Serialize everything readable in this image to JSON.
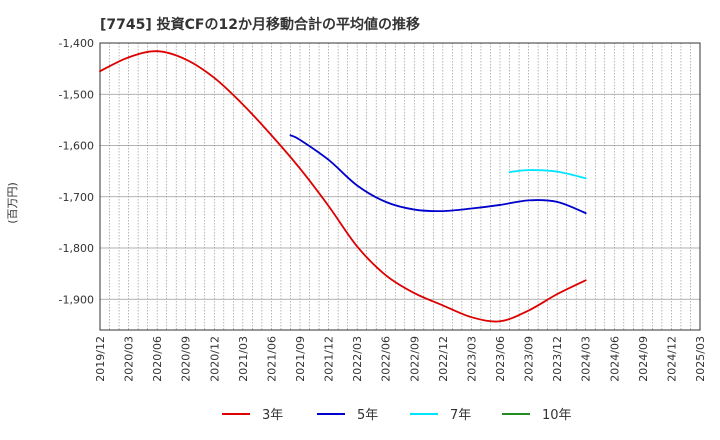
{
  "chart_data": {
    "type": "line",
    "title": "[7745]  投資CFの12か月移動合計の平均値の推移",
    "ylabel": "(百万円)",
    "xlabel": "",
    "ylim": [
      -1960,
      -1400
    ],
    "yticks": [
      -1400,
      -1500,
      -1600,
      -1700,
      -1800,
      -1900
    ],
    "ytick_labels": [
      "-1,400",
      "-1,500",
      "-1,600",
      "-1,700",
      "-1,800",
      "-1,900"
    ],
    "xticks": [
      "2019/12",
      "2020/03",
      "2020/06",
      "2020/09",
      "2020/12",
      "2021/03",
      "2021/06",
      "2021/09",
      "2021/12",
      "2022/03",
      "2022/06",
      "2022/09",
      "2022/12",
      "2023/03",
      "2023/06",
      "2023/09",
      "2023/12",
      "2024/03",
      "2024/06",
      "2024/09",
      "2024/12",
      "2025/03"
    ],
    "grid": true,
    "legend_position": "bottom",
    "series": [
      {
        "name": "3年",
        "color": "#dd0000",
        "points": [
          [
            "2019/12",
            -1455
          ],
          [
            "2020/03",
            -1428
          ],
          [
            "2020/06",
            -1416
          ],
          [
            "2020/09",
            -1432
          ],
          [
            "2020/12",
            -1468
          ],
          [
            "2021/03",
            -1520
          ],
          [
            "2021/06",
            -1580
          ],
          [
            "2021/09",
            -1645
          ],
          [
            "2021/12",
            -1718
          ],
          [
            "2022/03",
            -1797
          ],
          [
            "2022/06",
            -1853
          ],
          [
            "2022/09",
            -1888
          ],
          [
            "2022/12",
            -1912
          ],
          [
            "2023/03",
            -1935
          ],
          [
            "2023/06",
            -1943
          ],
          [
            "2023/09",
            -1922
          ],
          [
            "2023/12",
            -1890
          ],
          [
            "2024/03",
            -1863
          ]
        ]
      },
      {
        "name": "5年",
        "color": "#0000cc",
        "points": [
          [
            "2021/08",
            -1580
          ],
          [
            "2021/09",
            -1589
          ],
          [
            "2021/12",
            -1628
          ],
          [
            "2022/03",
            -1678
          ],
          [
            "2022/06",
            -1710
          ],
          [
            "2022/09",
            -1725
          ],
          [
            "2022/12",
            -1728
          ],
          [
            "2023/03",
            -1723
          ],
          [
            "2023/06",
            -1716
          ],
          [
            "2023/09",
            -1707
          ],
          [
            "2023/12",
            -1710
          ],
          [
            "2024/03",
            -1732
          ]
        ]
      },
      {
        "name": "7年",
        "color": "#00e5ff",
        "points": [
          [
            "2023/07",
            -1652
          ],
          [
            "2023/09",
            -1648
          ],
          [
            "2023/12",
            -1651
          ],
          [
            "2024/03",
            -1664
          ]
        ]
      },
      {
        "name": "10年",
        "color": "#228b22",
        "points": []
      }
    ]
  }
}
